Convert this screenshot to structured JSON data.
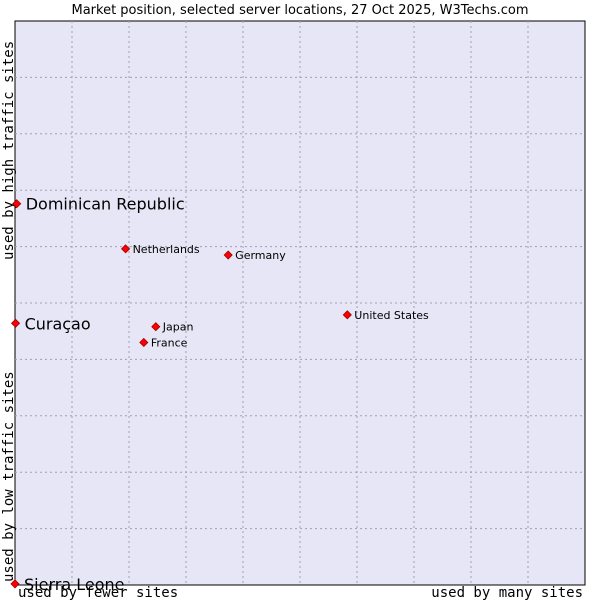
{
  "chart_data": {
    "type": "scatter",
    "title": "Market position, selected server locations, 27 Oct 2025, W3Techs.com",
    "xlabel_low": "used by fewer sites",
    "xlabel_high": "used by many sites",
    "ylabel_low": "used by low traffic sites",
    "ylabel_high": "used by high traffic sites",
    "xlim": [
      0,
      100
    ],
    "ylim": [
      0,
      100
    ],
    "grid": true,
    "colors": {
      "plot_bg": "#e6e6f7",
      "grid": "#a0a0b0",
      "point": "#ff0000",
      "point_edge": "#990000"
    },
    "points": [
      {
        "label": "Dominican Republic",
        "x": 0.3,
        "y": 67.6,
        "emphasis": true
      },
      {
        "label": "Netherlands",
        "x": 19.4,
        "y": 59.6,
        "emphasis": false
      },
      {
        "label": "Germany",
        "x": 37.4,
        "y": 58.5,
        "emphasis": false
      },
      {
        "label": "Curaçao",
        "x": 0.1,
        "y": 46.4,
        "emphasis": true
      },
      {
        "label": "United States",
        "x": 58.3,
        "y": 47.9,
        "emphasis": false
      },
      {
        "label": "Japan",
        "x": 24.7,
        "y": 45.8,
        "emphasis": false
      },
      {
        "label": "France",
        "x": 22.6,
        "y": 43.0,
        "emphasis": false
      },
      {
        "label": "Sierra Leone",
        "x": 0.0,
        "y": 0.2,
        "emphasis": true
      }
    ]
  }
}
